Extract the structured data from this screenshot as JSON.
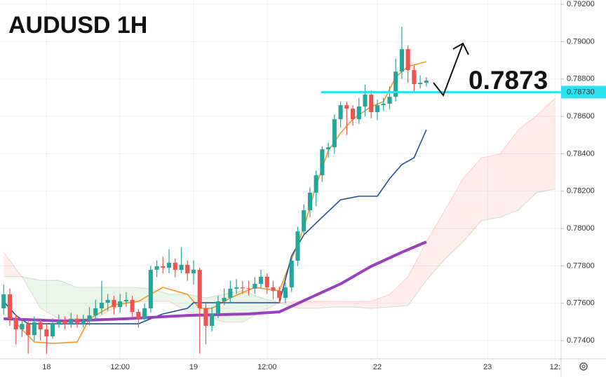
{
  "chart_data": {
    "type": "candlestick",
    "title": "AUDUSD 1H",
    "xlim": [
      -0.6,
      91
    ],
    "xticks": [
      {
        "value": 7,
        "label": "18"
      },
      {
        "value": 19,
        "label": "12:00"
      },
      {
        "value": 31,
        "label": "19"
      },
      {
        "value": 43,
        "label": "12:00"
      },
      {
        "value": 61,
        "label": "22"
      },
      {
        "value": 79,
        "label": "23"
      },
      {
        "value": 90,
        "label": "12:"
      }
    ],
    "ylim": [
      0.77303,
      0.79223
    ],
    "yticks": [
      {
        "value": 0.774,
        "label": "0.77400"
      },
      {
        "value": 0.776,
        "label": "0.77600"
      },
      {
        "value": 0.778,
        "label": "0.77800"
      },
      {
        "value": 0.78,
        "label": "0.78000"
      },
      {
        "value": 0.782,
        "label": "0.78200"
      },
      {
        "value": 0.784,
        "label": "0.78400"
      },
      {
        "value": 0.786,
        "label": "0.78600"
      },
      {
        "value": 0.788,
        "label": "0.78800"
      },
      {
        "value": 0.79,
        "label": "0.79000"
      },
      {
        "value": 0.792,
        "label": "0.79200"
      }
    ],
    "grid": true,
    "up_color": "#26a69a",
    "down_color": "#ef5350",
    "open": [
      0.77573,
      0.77648,
      0.77517,
      0.7746,
      0.7749,
      0.7743,
      0.77498,
      0.7746,
      0.77423,
      0.7749,
      0.77505,
      0.7749,
      0.77517,
      0.7749,
      0.77505,
      0.77535,
      0.77573,
      0.77603,
      0.77618,
      0.7758,
      0.7761,
      0.77618,
      0.77554,
      0.77517,
      0.77573,
      0.77779,
      0.77798,
      0.7779,
      0.77817,
      0.77779,
      0.77806,
      0.7776,
      0.77779,
      0.77573,
      0.77479,
      0.77543,
      0.7761,
      0.77629,
      0.77678,
      0.77685,
      0.7768,
      0.77678,
      0.77704,
      0.77742,
      0.77685,
      0.77667,
      0.77629,
      0.77685,
      0.77828,
      0.77985,
      0.78098,
      0.78192,
      0.78285,
      0.78424,
      0.78435,
      0.78585,
      0.7866,
      0.78642,
      0.78585,
      0.78653,
      0.78717,
      0.78623,
      0.7866,
      0.78668,
      0.78705,
      0.7884,
      0.7896,
      0.78848,
      0.78773,
      0.7878
    ],
    "high": [
      0.777,
      0.7768,
      0.7754,
      0.7752,
      0.7751,
      0.7753,
      0.7752,
      0.7749,
      0.7752,
      0.7754,
      0.7753,
      0.7755,
      0.7754,
      0.7754,
      0.7758,
      0.7762,
      0.7772,
      0.7765,
      0.7764,
      0.7765,
      0.7766,
      0.7764,
      0.7757,
      0.776,
      0.778,
      0.7783,
      0.7785,
      0.7789,
      0.7784,
      0.779,
      0.7783,
      0.7783,
      0.7779,
      0.776,
      0.7758,
      0.7764,
      0.7768,
      0.7772,
      0.7773,
      0.7772,
      0.7772,
      0.7774,
      0.7778,
      0.7776,
      0.7772,
      0.7769,
      0.7771,
      0.7785,
      0.7801,
      0.7813,
      0.7822,
      0.7831,
      0.7844,
      0.7846,
      0.7861,
      0.7868,
      0.7868,
      0.7866,
      0.787,
      0.7877,
      0.7874,
      0.7869,
      0.787,
      0.7876,
      0.7891,
      0.7908,
      0.7898,
      0.7887,
      0.7882,
      0.7881
    ],
    "low": [
      0.7754,
      0.7748,
      0.7738,
      0.7742,
      0.7733,
      0.774,
      0.774,
      0.7733,
      0.7741,
      0.7747,
      0.7746,
      0.7747,
      0.7747,
      0.7747,
      0.7748,
      0.7751,
      0.7754,
      0.7756,
      0.7754,
      0.7755,
      0.7758,
      0.7752,
      0.7747,
      0.775,
      0.7755,
      0.7774,
      0.7776,
      0.7776,
      0.7774,
      0.7776,
      0.7772,
      0.777,
      0.7733,
      0.7738,
      0.7745,
      0.7752,
      0.7759,
      0.776,
      0.7765,
      0.7765,
      0.7764,
      0.7765,
      0.7768,
      0.7765,
      0.7762,
      0.776,
      0.776,
      0.7766,
      0.778,
      0.7796,
      0.7806,
      0.7812,
      0.7825,
      0.7838,
      0.784,
      0.7854,
      0.785,
      0.7855,
      0.7856,
      0.786,
      0.7859,
      0.7858,
      0.7863,
      0.7864,
      0.7868,
      0.788,
      0.7878,
      0.7873,
      0.7875,
      0.7876
    ],
    "close": [
      0.77648,
      0.77517,
      0.7746,
      0.7749,
      0.7743,
      0.77498,
      0.7746,
      0.77423,
      0.7749,
      0.77505,
      0.7749,
      0.77517,
      0.7749,
      0.77505,
      0.77535,
      0.77573,
      0.77603,
      0.77618,
      0.7758,
      0.7761,
      0.77618,
      0.77554,
      0.77517,
      0.77573,
      0.77779,
      0.77798,
      0.7779,
      0.77817,
      0.77779,
      0.77806,
      0.7776,
      0.77779,
      0.77573,
      0.77479,
      0.77543,
      0.7761,
      0.77629,
      0.77678,
      0.77685,
      0.7768,
      0.77678,
      0.77704,
      0.77742,
      0.77685,
      0.77667,
      0.77629,
      0.77685,
      0.77828,
      0.77985,
      0.78098,
      0.78192,
      0.78285,
      0.78424,
      0.78435,
      0.78585,
      0.7866,
      0.78642,
      0.78585,
      0.78653,
      0.78717,
      0.78623,
      0.7866,
      0.78668,
      0.78705,
      0.7884,
      0.7896,
      0.78848,
      0.78773,
      0.7878,
      0.78792
    ],
    "cloud": {
      "x": [
        0,
        3,
        6,
        9,
        12,
        15,
        18,
        21,
        24,
        27,
        30,
        33,
        36,
        39,
        42,
        45,
        48,
        51,
        54,
        57,
        60,
        63,
        66,
        69,
        72,
        75,
        78,
        81,
        84,
        87,
        90
      ],
      "span_a": [
        0.77742,
        0.77742,
        0.77723,
        0.77723,
        0.77685,
        0.77685,
        0.77685,
        0.77685,
        0.77678,
        0.77648,
        0.77648,
        0.77629,
        0.77648,
        0.77667,
        0.77629,
        0.77603,
        0.77573,
        0.77573,
        0.7758,
        0.7758,
        0.77573,
        0.7758,
        0.77588,
        0.77723,
        0.77835,
        0.77929,
        0.78042,
        0.7806,
        0.78098,
        0.78192,
        0.78211
      ],
      "span_b": [
        0.77873,
        0.77742,
        0.77573,
        0.77517,
        0.77517,
        0.77517,
        0.77573,
        0.7761,
        0.7761,
        0.7761,
        0.77554,
        0.77535,
        0.77498,
        0.77498,
        0.77554,
        0.77603,
        0.7761,
        0.7761,
        0.7761,
        0.7761,
        0.7761,
        0.77648,
        0.77742,
        0.77929,
        0.78098,
        0.78267,
        0.78379,
        0.78398,
        0.78529,
        0.78604,
        0.78698
      ],
      "up_color": "#4caf50",
      "down_color": "#ff5252"
    },
    "lines": [
      {
        "color": "#f7931e",
        "width": 1.6,
        "x": [
          1,
          3,
          5,
          8,
          12,
          14,
          18,
          22,
          26,
          30,
          32,
          34,
          37,
          41,
          45,
          47,
          49,
          51,
          53,
          55,
          57,
          60,
          62,
          64,
          66,
          69
        ],
        "values": [
          0.77535,
          0.7746,
          0.77393,
          0.77385,
          0.77393,
          0.77517,
          0.77592,
          0.7761,
          0.77685,
          0.77648,
          0.77573,
          0.77573,
          0.77629,
          0.77685,
          0.77667,
          0.77835,
          0.78004,
          0.78229,
          0.78417,
          0.78511,
          0.78585,
          0.78653,
          0.78679,
          0.78811,
          0.78867,
          0.78893
        ]
      },
      {
        "color": "#1f4e9c",
        "width": 1.6,
        "x": [
          0,
          2,
          4,
          22,
          24,
          26,
          30,
          31,
          45,
          47,
          49,
          52,
          55,
          58,
          61,
          63,
          65,
          67,
          68,
          69
        ],
        "values": [
          0.7761,
          0.77535,
          0.7749,
          0.7749,
          0.77517,
          0.77543,
          0.77573,
          0.77603,
          0.77603,
          0.77854,
          0.77966,
          0.78061,
          0.78154,
          0.78173,
          0.78173,
          0.78267,
          0.78342,
          0.78379,
          0.78454,
          0.78529
        ]
      },
      {
        "color": "#9c3fbf",
        "width": 4,
        "x": [
          0,
          10,
          20,
          30,
          40,
          45,
          50,
          55,
          60,
          65,
          69
        ],
        "values": [
          0.77517,
          0.77505,
          0.77517,
          0.77535,
          0.77543,
          0.77554,
          0.77629,
          0.77704,
          0.77798,
          0.77873,
          0.77929
        ]
      }
    ],
    "level": {
      "value": 0.7873,
      "label": "0.7873",
      "axis_label": "0.78730",
      "color": "#29e3ef"
    }
  }
}
